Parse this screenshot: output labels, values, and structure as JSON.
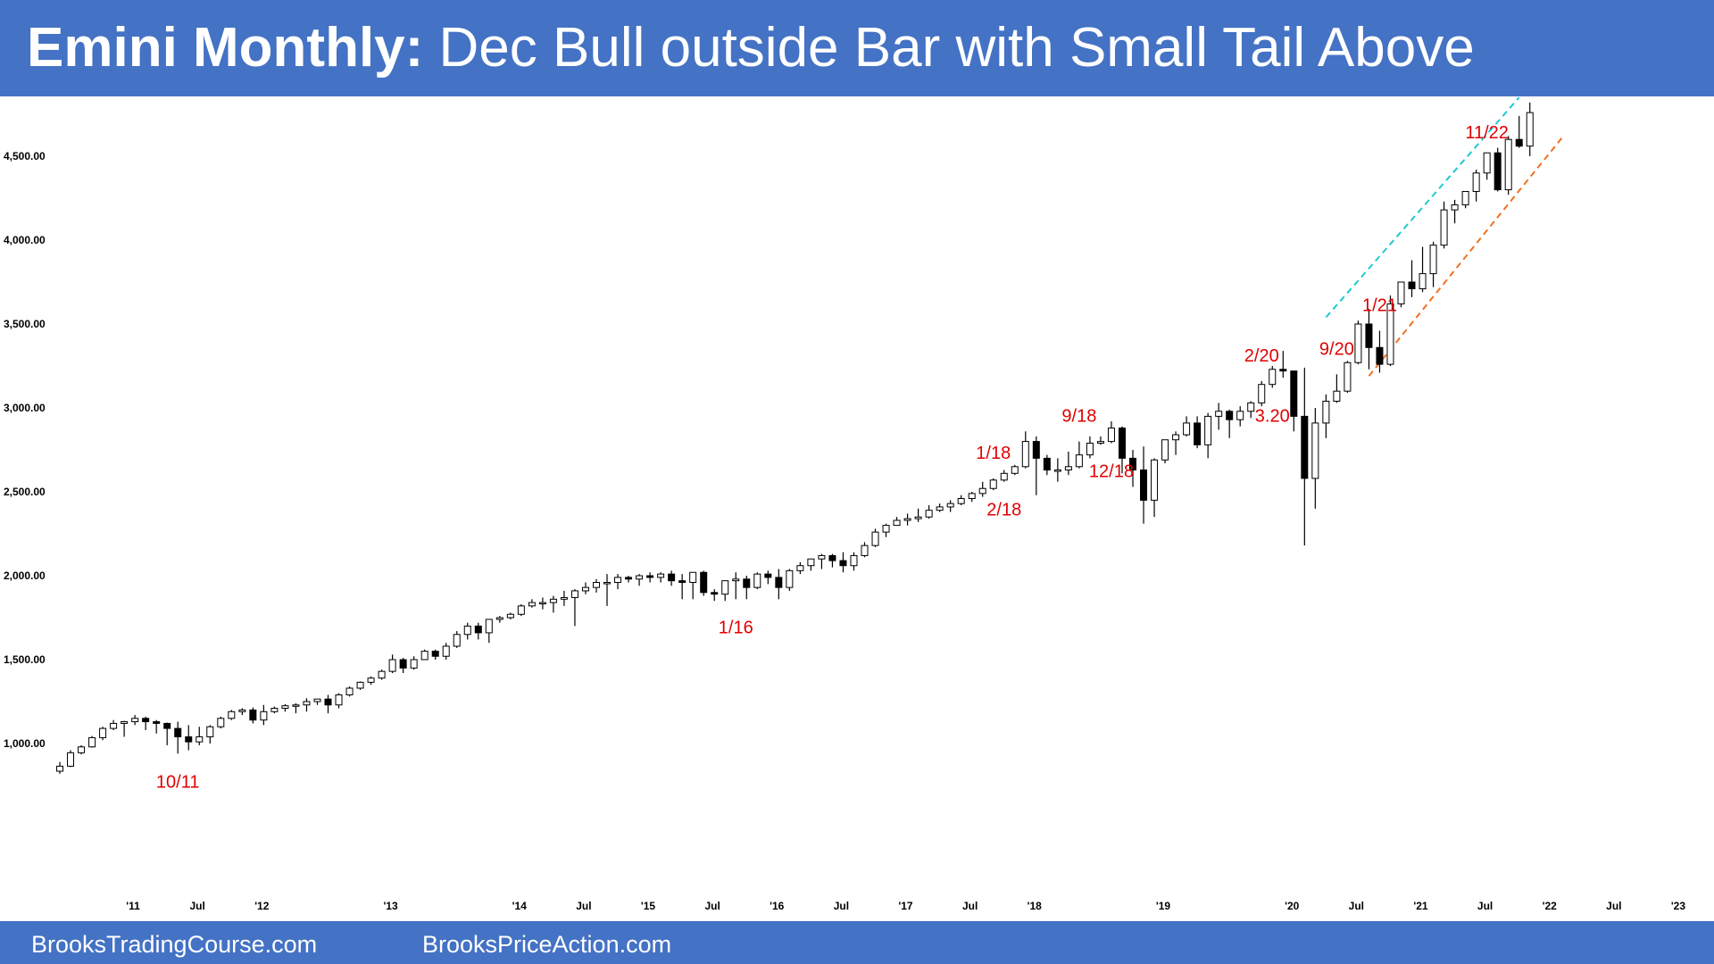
{
  "header": {
    "title_bold": "Emini Monthly:",
    "title_rest": " Dec Bull outside Bar with Small Tail Above"
  },
  "footer": {
    "left": "BrooksTradingCourse.com",
    "right": "BrooksPriceAction.com"
  },
  "colors": {
    "banner": "#4472c4",
    "annotation": "#e00000",
    "bull_body": "#ffffff",
    "bear_body": "#000000",
    "channel_top": "#1fc7d4",
    "channel_bottom": "#f07020"
  },
  "chart_data": {
    "type": "candlestick",
    "title": "Emini Monthly",
    "timeframe": "monthly",
    "x_range": [
      "2010-10",
      "2023-01"
    ],
    "y_range": [
      800,
      4900
    ],
    "y_ticks": [
      {
        "v": 1000,
        "label": "1,000.00"
      },
      {
        "v": 1500,
        "label": "1,500.00"
      },
      {
        "v": 2000,
        "label": "2,000.00"
      },
      {
        "v": 2500,
        "label": "2,500.00"
      },
      {
        "v": 3000,
        "label": "3,000.00"
      },
      {
        "v": 3500,
        "label": "3,500.00"
      },
      {
        "v": 4000,
        "label": "4,000.00"
      },
      {
        "v": 4500,
        "label": "4,500.00"
      }
    ],
    "x_ticks": [
      {
        "i": 3,
        "label": "'11"
      },
      {
        "i": 9,
        "label": "Jul"
      },
      {
        "i": 15,
        "label": "'12"
      },
      {
        "i": 27,
        "label": "'13"
      },
      {
        "i": 39,
        "label": "'14"
      },
      {
        "i": 45,
        "label": "Jul"
      },
      {
        "i": 51,
        "label": "'15"
      },
      {
        "i": 57,
        "label": "Jul"
      },
      {
        "i": 63,
        "label": "'16"
      },
      {
        "i": 69,
        "label": "Jul"
      },
      {
        "i": 75,
        "label": "'17"
      },
      {
        "i": 81,
        "label": "Jul"
      },
      {
        "i": 87,
        "label": "'18"
      },
      {
        "i": 99,
        "label": "'19"
      },
      {
        "i": 111,
        "label": "'20"
      },
      {
        "i": 117,
        "label": "Jul"
      },
      {
        "i": 123,
        "label": "'21"
      },
      {
        "i": 129,
        "label": "Jul"
      },
      {
        "i": 135,
        "label": "'22"
      },
      {
        "i": 141,
        "label": "Jul"
      },
      {
        "i": 147,
        "label": "'23"
      }
    ],
    "candles": [
      [
        835,
        890,
        820,
        865
      ],
      [
        865,
        960,
        860,
        945
      ],
      [
        945,
        990,
        935,
        980
      ],
      [
        980,
        1045,
        975,
        1035
      ],
      [
        1035,
        1100,
        1020,
        1090
      ],
      [
        1090,
        1140,
        1080,
        1120
      ],
      [
        1120,
        1135,
        1040,
        1130
      ],
      [
        1130,
        1170,
        1110,
        1150
      ],
      [
        1150,
        1160,
        1080,
        1130
      ],
      [
        1130,
        1140,
        1060,
        1120
      ],
      [
        1120,
        1125,
        990,
        1090
      ],
      [
        1090,
        1130,
        940,
        1040
      ],
      [
        1040,
        1110,
        960,
        1010
      ],
      [
        1010,
        1100,
        990,
        1040
      ],
      [
        1040,
        1110,
        1000,
        1100
      ],
      [
        1100,
        1160,
        1090,
        1150
      ],
      [
        1150,
        1200,
        1140,
        1190
      ],
      [
        1190,
        1210,
        1170,
        1200
      ],
      [
        1200,
        1215,
        1120,
        1140
      ],
      [
        1140,
        1230,
        1110,
        1190
      ],
      [
        1190,
        1220,
        1180,
        1210
      ],
      [
        1210,
        1235,
        1190,
        1225
      ],
      [
        1225,
        1240,
        1180,
        1230
      ],
      [
        1230,
        1270,
        1190,
        1250
      ],
      [
        1250,
        1260,
        1230,
        1265
      ],
      [
        1265,
        1290,
        1180,
        1230
      ],
      [
        1230,
        1300,
        1210,
        1290
      ],
      [
        1290,
        1340,
        1280,
        1330
      ],
      [
        1330,
        1370,
        1320,
        1365
      ],
      [
        1365,
        1400,
        1350,
        1390
      ],
      [
        1390,
        1440,
        1380,
        1430
      ],
      [
        1430,
        1530,
        1420,
        1500
      ],
      [
        1500,
        1510,
        1420,
        1450
      ],
      [
        1450,
        1520,
        1440,
        1500
      ],
      [
        1500,
        1560,
        1500,
        1550
      ],
      [
        1550,
        1560,
        1500,
        1520
      ],
      [
        1520,
        1600,
        1500,
        1580
      ],
      [
        1580,
        1670,
        1570,
        1650
      ],
      [
        1650,
        1720,
        1620,
        1700
      ],
      [
        1700,
        1720,
        1620,
        1660
      ],
      [
        1660,
        1740,
        1600,
        1740
      ],
      [
        1740,
        1760,
        1720,
        1750
      ],
      [
        1750,
        1780,
        1740,
        1770
      ],
      [
        1770,
        1830,
        1760,
        1820
      ],
      [
        1820,
        1860,
        1810,
        1840
      ],
      [
        1840,
        1870,
        1800,
        1840
      ],
      [
        1840,
        1880,
        1780,
        1860
      ],
      [
        1860,
        1910,
        1820,
        1870
      ],
      [
        1870,
        1920,
        1700,
        1910
      ],
      [
        1910,
        1960,
        1890,
        1930
      ],
      [
        1930,
        1980,
        1900,
        1960
      ],
      [
        1960,
        2010,
        1820,
        1960
      ],
      [
        1960,
        2010,
        1920,
        1990
      ],
      [
        1990,
        2000,
        1960,
        1980
      ],
      [
        1980,
        2010,
        1940,
        2000
      ],
      [
        2000,
        2020,
        1960,
        1990
      ],
      [
        1990,
        2020,
        1960,
        2010
      ],
      [
        2010,
        2030,
        1940,
        1970
      ],
      [
        1970,
        2010,
        1860,
        1960
      ],
      [
        1960,
        2020,
        1860,
        2020
      ],
      [
        2020,
        2030,
        1880,
        1900
      ],
      [
        1900,
        1920,
        1850,
        1890
      ],
      [
        1890,
        1960,
        1850,
        1970
      ],
      [
        1970,
        2020,
        1860,
        1980
      ],
      [
        1980,
        2000,
        1860,
        1930
      ],
      [
        1930,
        2020,
        1920,
        2010
      ],
      [
        2010,
        2030,
        1950,
        1990
      ],
      [
        1990,
        2040,
        1860,
        1930
      ],
      [
        1930,
        2040,
        1910,
        2030
      ],
      [
        2030,
        2080,
        2010,
        2060
      ],
      [
        2060,
        2090,
        2030,
        2100
      ],
      [
        2100,
        2130,
        2040,
        2120
      ],
      [
        2120,
        2130,
        2050,
        2090
      ],
      [
        2090,
        2140,
        2020,
        2060
      ],
      [
        2060,
        2140,
        2030,
        2120
      ],
      [
        2120,
        2200,
        2110,
        2180
      ],
      [
        2180,
        2280,
        2170,
        2260
      ],
      [
        2260,
        2310,
        2230,
        2300
      ],
      [
        2300,
        2350,
        2300,
        2330
      ],
      [
        2330,
        2370,
        2300,
        2340
      ],
      [
        2340,
        2400,
        2320,
        2350
      ],
      [
        2350,
        2420,
        2340,
        2390
      ],
      [
        2390,
        2430,
        2380,
        2410
      ],
      [
        2410,
        2450,
        2380,
        2430
      ],
      [
        2430,
        2480,
        2420,
        2460
      ],
      [
        2460,
        2500,
        2440,
        2490
      ],
      [
        2490,
        2560,
        2470,
        2520
      ],
      [
        2520,
        2580,
        2510,
        2570
      ],
      [
        2570,
        2630,
        2560,
        2610
      ],
      [
        2610,
        2660,
        2600,
        2650
      ],
      [
        2650,
        2860,
        2640,
        2800
      ],
      [
        2800,
        2830,
        2480,
        2700
      ],
      [
        2700,
        2720,
        2600,
        2630
      ],
      [
        2630,
        2700,
        2560,
        2630
      ],
      [
        2630,
        2740,
        2600,
        2650
      ],
      [
        2650,
        2800,
        2640,
        2720
      ],
      [
        2720,
        2830,
        2700,
        2790
      ],
      [
        2790,
        2830,
        2780,
        2800
      ],
      [
        2800,
        2920,
        2790,
        2880
      ],
      [
        2880,
        2890,
        2610,
        2700
      ],
      [
        2700,
        2750,
        2530,
        2630
      ],
      [
        2630,
        2770,
        2310,
        2450
      ],
      [
        2450,
        2700,
        2350,
        2690
      ],
      [
        2690,
        2810,
        2670,
        2810
      ],
      [
        2810,
        2860,
        2720,
        2840
      ],
      [
        2840,
        2950,
        2830,
        2910
      ],
      [
        2910,
        2950,
        2760,
        2780
      ],
      [
        2780,
        2970,
        2700,
        2950
      ],
      [
        2950,
        3030,
        2870,
        2980
      ],
      [
        2980,
        2990,
        2820,
        2930
      ],
      [
        2930,
        3010,
        2890,
        2980
      ],
      [
        2980,
        3040,
        2940,
        3030
      ],
      [
        3030,
        3160,
        3010,
        3140
      ],
      [
        3140,
        3250,
        3120,
        3230
      ],
      [
        3230,
        3340,
        3180,
        3220
      ],
      [
        3220,
        3220,
        2860,
        2950
      ],
      [
        2950,
        3240,
        2180,
        2580
      ],
      [
        2580,
        3000,
        2400,
        2910
      ],
      [
        2910,
        3080,
        2820,
        3040
      ],
      [
        3040,
        3200,
        3030,
        3100
      ],
      [
        3100,
        3280,
        3090,
        3270
      ],
      [
        3270,
        3520,
        3260,
        3500
      ],
      [
        3500,
        3590,
        3230,
        3360
      ],
      [
        3360,
        3460,
        3210,
        3260
      ],
      [
        3260,
        3670,
        3250,
        3620
      ],
      [
        3620,
        3730,
        3600,
        3750
      ],
      [
        3750,
        3880,
        3660,
        3710
      ],
      [
        3710,
        3960,
        3690,
        3800
      ],
      [
        3800,
        3990,
        3720,
        3970
      ],
      [
        3970,
        4230,
        3950,
        4180
      ],
      [
        4180,
        4240,
        4100,
        4210
      ],
      [
        4210,
        4260,
        4190,
        4290
      ],
      [
        4290,
        4420,
        4230,
        4400
      ],
      [
        4400,
        4490,
        4360,
        4520
      ],
      [
        4520,
        4550,
        4290,
        4300
      ],
      [
        4300,
        4620,
        4270,
        4600
      ],
      [
        4600,
        4740,
        4550,
        4560
      ],
      [
        4560,
        4820,
        4500,
        4760
      ]
    ],
    "annotations": [
      {
        "label": "10/11",
        "i": 11,
        "anchor": "below"
      },
      {
        "label": "1/16",
        "i": 63,
        "anchor": "below"
      },
      {
        "label": "1/18",
        "i": 87,
        "anchor": "above"
      },
      {
        "label": "2/18",
        "i": 88,
        "anchor": "below"
      },
      {
        "label": "9/18",
        "i": 95,
        "anchor": "above"
      },
      {
        "label": "12/18",
        "i": 98,
        "anchor": "below"
      },
      {
        "label": "2/20",
        "i": 112,
        "anchor": "above"
      },
      {
        "label": "3.20",
        "i": 113,
        "anchor": "below"
      },
      {
        "label": "9/20",
        "i": 119,
        "anchor": "above"
      },
      {
        "label": "1/21",
        "i": 123,
        "anchor": "above"
      },
      {
        "label": "11/22",
        "i": 133,
        "anchor": "above"
      }
    ],
    "trendlines": [
      {
        "name": "channel-top",
        "style": "dashed",
        "color": "#1fc7d4",
        "from": {
          "i": 118,
          "price": 3540
        },
        "to": {
          "i": 136,
          "price": 4850
        }
      },
      {
        "name": "channel-bottom",
        "style": "dashed",
        "color": "#f07020",
        "from": {
          "i": 122,
          "price": 3190
        },
        "to": {
          "i": 140,
          "price": 4610
        }
      }
    ]
  }
}
